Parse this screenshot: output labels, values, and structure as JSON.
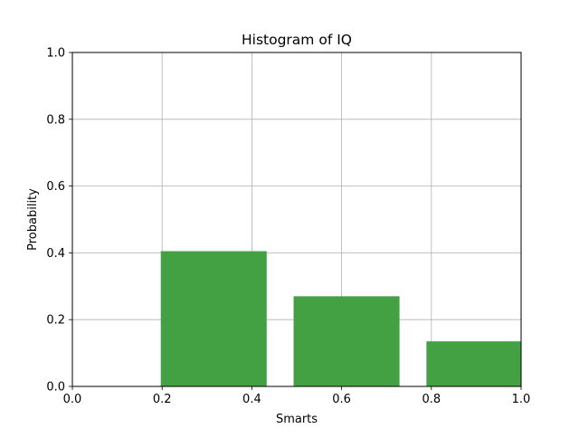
{
  "chart_data": {
    "type": "bar",
    "title": "Histogram of IQ",
    "xlabel": "Smarts",
    "ylabel": "Probability",
    "xlim": [
      0.0,
      1.0
    ],
    "ylim": [
      0.0,
      1.0
    ],
    "grid": true,
    "bar_color": "#43a043",
    "axis_color": "#000000",
    "grid_color": "#b0b0b0",
    "bars": [
      {
        "x_start": 0.197,
        "x_end": 0.433,
        "value": 0.405
      },
      {
        "x_start": 0.493,
        "x_end": 0.729,
        "value": 0.27
      },
      {
        "x_start": 0.789,
        "x_end": 1.0,
        "value": 0.135
      }
    ],
    "xticks": [
      {
        "value": 0.0,
        "label": "0.0"
      },
      {
        "value": 0.2,
        "label": "0.2"
      },
      {
        "value": 0.4,
        "label": "0.4"
      },
      {
        "value": 0.6,
        "label": "0.6"
      },
      {
        "value": 0.8,
        "label": "0.8"
      },
      {
        "value": 1.0,
        "label": "1.0"
      }
    ],
    "yticks": [
      {
        "value": 0.0,
        "label": "0.0"
      },
      {
        "value": 0.2,
        "label": "0.2"
      },
      {
        "value": 0.4,
        "label": "0.4"
      },
      {
        "value": 0.6,
        "label": "0.6"
      },
      {
        "value": 0.8,
        "label": "0.8"
      },
      {
        "value": 1.0,
        "label": "1.0"
      }
    ]
  }
}
